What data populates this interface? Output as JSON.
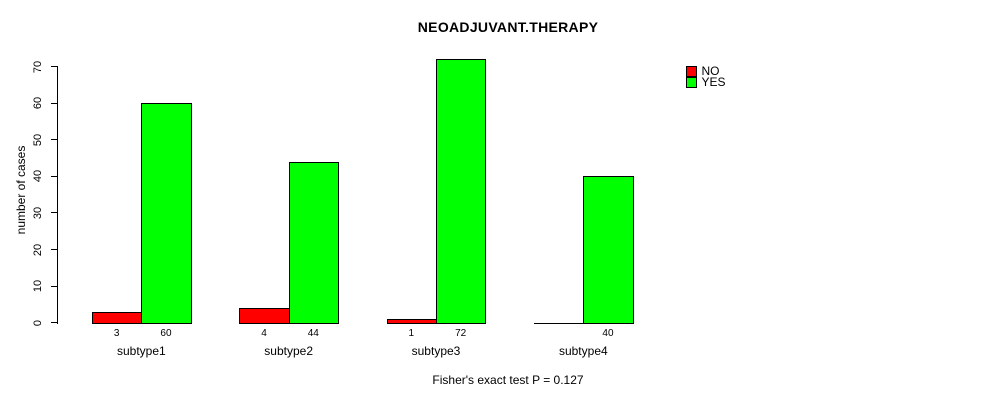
{
  "title": "NEOADJUVANT.THERAPY",
  "y_axis_label": "number of cases",
  "caption": "Fisher's exact test P = 0.127",
  "colors": {
    "no": "#ff0000",
    "yes": "#00ff00",
    "axis": "#000000",
    "background": "#ffffff"
  },
  "legend": {
    "position": "top-right",
    "items": [
      "NO",
      "YES"
    ]
  },
  "chart_data": {
    "type": "bar",
    "title": "NEOADJUVANT.THERAPY",
    "xlabel": "",
    "ylabel": "number of cases",
    "categories": [
      "subtype1",
      "subtype2",
      "subtype3",
      "subtype4"
    ],
    "series": [
      {
        "name": "NO",
        "color": "#ff0000",
        "values": [
          3,
          4,
          1,
          0
        ]
      },
      {
        "name": "YES",
        "color": "#00ff00",
        "values": [
          60,
          44,
          72,
          40
        ]
      }
    ],
    "ylim": [
      0,
      70
    ],
    "yticks": [
      0,
      10,
      20,
      30,
      40,
      50,
      60,
      70
    ],
    "grid": false,
    "legend_position": "top-right",
    "bar_value_labels": [
      "3",
      "60",
      "4",
      "44",
      "1",
      "72",
      "",
      "40"
    ],
    "caption": "Fisher's exact test P = 0.127"
  }
}
